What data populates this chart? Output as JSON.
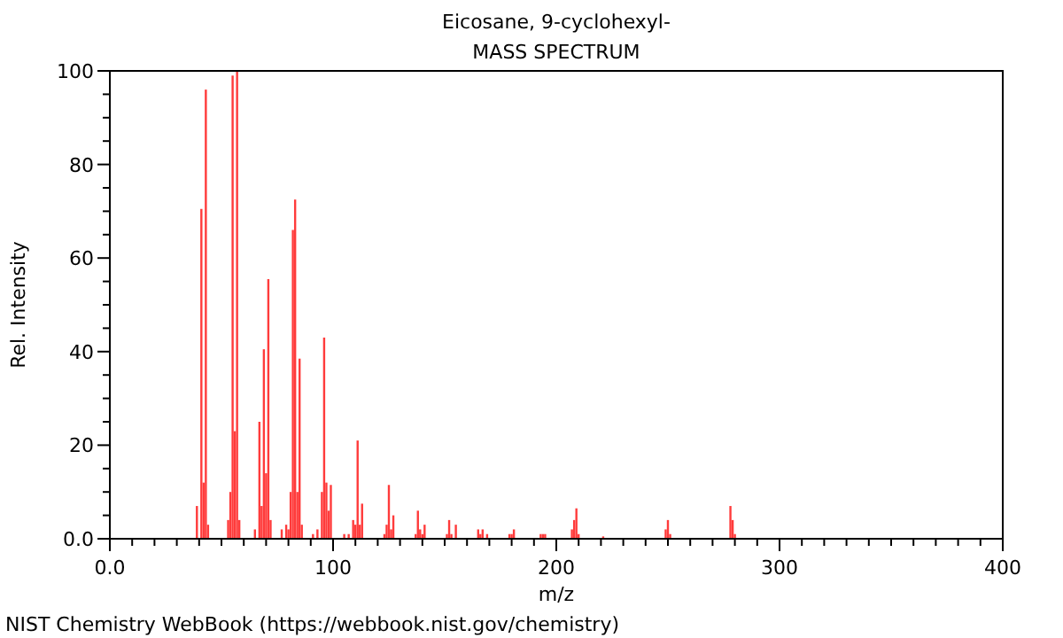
{
  "chart_data": {
    "type": "bar",
    "title": "Eicosane, 9-cyclohexyl-",
    "subtitle": "MASS SPECTRUM",
    "xlabel": "m/z",
    "ylabel": "Rel. Intensity",
    "color": "#ff3b3b",
    "x": [
      39,
      41,
      42,
      43,
      44,
      53,
      54,
      55,
      56,
      57,
      58,
      65,
      67,
      68,
      69,
      70,
      71,
      72,
      77,
      79,
      80,
      81,
      82,
      83,
      84,
      85,
      86,
      91,
      93,
      95,
      96,
      97,
      98,
      99,
      105,
      107,
      109,
      110,
      111,
      112,
      113,
      123,
      124,
      125,
      126,
      127,
      137,
      138,
      139,
      140,
      141,
      151,
      152,
      153,
      155,
      165,
      166,
      167,
      169,
      179,
      180,
      181,
      193,
      194,
      195,
      207,
      208,
      209,
      210,
      221,
      249,
      250,
      251,
      278,
      279,
      280
    ],
    "values": [
      7,
      70.5,
      12,
      96,
      3,
      4,
      10,
      99,
      23,
      100,
      4,
      2,
      25,
      7,
      40.5,
      14,
      55.5,
      4,
      2,
      3,
      2,
      10,
      66,
      72.5,
      10,
      38.5,
      3,
      1,
      2,
      10,
      43,
      12,
      6,
      11.5,
      1,
      1,
      4,
      3,
      21,
      3,
      7.5,
      1,
      3,
      11.5,
      2,
      5,
      1,
      6,
      2,
      1,
      3,
      1,
      4,
      1,
      3,
      2,
      1,
      2,
      1,
      1,
      1,
      2,
      1,
      1,
      1,
      2,
      4,
      6.5,
      1,
      0.5,
      2,
      4,
      1,
      7,
      4,
      1
    ],
    "xlim": [
      0,
      400
    ],
    "ylim": [
      0,
      100
    ],
    "xticks": [
      {
        "value": 0,
        "label": "0.0"
      },
      {
        "value": 10,
        "label": null
      },
      {
        "value": 20,
        "label": null
      },
      {
        "value": 30,
        "label": null
      },
      {
        "value": 40,
        "label": null
      },
      {
        "value": 50,
        "label": null
      },
      {
        "value": 60,
        "label": null
      },
      {
        "value": 70,
        "label": null
      },
      {
        "value": 80,
        "label": null
      },
      {
        "value": 90,
        "label": null
      },
      100,
      {
        "value": 110,
        "label": null
      },
      {
        "value": 120,
        "label": null
      },
      {
        "value": 130,
        "label": null
      },
      {
        "value": 140,
        "label": null
      },
      {
        "value": 150,
        "label": null
      },
      {
        "value": 160,
        "label": null
      },
      {
        "value": 170,
        "label": null
      },
      {
        "value": 180,
        "label": null
      },
      {
        "value": 190,
        "label": null
      },
      200,
      {
        "value": 210,
        "label": null
      },
      {
        "value": 220,
        "label": null
      },
      {
        "value": 230,
        "label": null
      },
      {
        "value": 240,
        "label": null
      },
      {
        "value": 250,
        "label": null
      },
      {
        "value": 260,
        "label": null
      },
      {
        "value": 270,
        "label": null
      },
      {
        "value": 280,
        "label": null
      },
      {
        "value": 290,
        "label": null
      },
      300,
      {
        "value": 310,
        "label": null
      },
      {
        "value": 320,
        "label": null
      },
      {
        "value": 330,
        "label": null
      },
      {
        "value": 340,
        "label": null
      },
      {
        "value": 350,
        "label": null
      },
      {
        "value": 360,
        "label": null
      },
      {
        "value": 370,
        "label": null
      },
      {
        "value": 380,
        "label": null
      },
      {
        "value": 390,
        "label": null
      },
      400
    ],
    "yticks": [
      {
        "value": 0,
        "label": "0.0"
      },
      {
        "value": 5,
        "label": null
      },
      {
        "value": 10,
        "label": null
      },
      {
        "value": 15,
        "label": null
      },
      20,
      {
        "value": 25,
        "label": null
      },
      {
        "value": 30,
        "label": null
      },
      {
        "value": 35,
        "label": null
      },
      40,
      {
        "value": 45,
        "label": null
      },
      {
        "value": 50,
        "label": null
      },
      {
        "value": 55,
        "label": null
      },
      60,
      {
        "value": 65,
        "label": null
      },
      {
        "value": 70,
        "label": null
      },
      {
        "value": 75,
        "label": null
      },
      80,
      {
        "value": 85,
        "label": null
      },
      {
        "value": 90,
        "label": null
      },
      {
        "value": 95,
        "label": null
      },
      100
    ],
    "annotations": [
      "NIST Chemistry WebBook (https://webbook.nist.gov/chemistry)"
    ]
  }
}
